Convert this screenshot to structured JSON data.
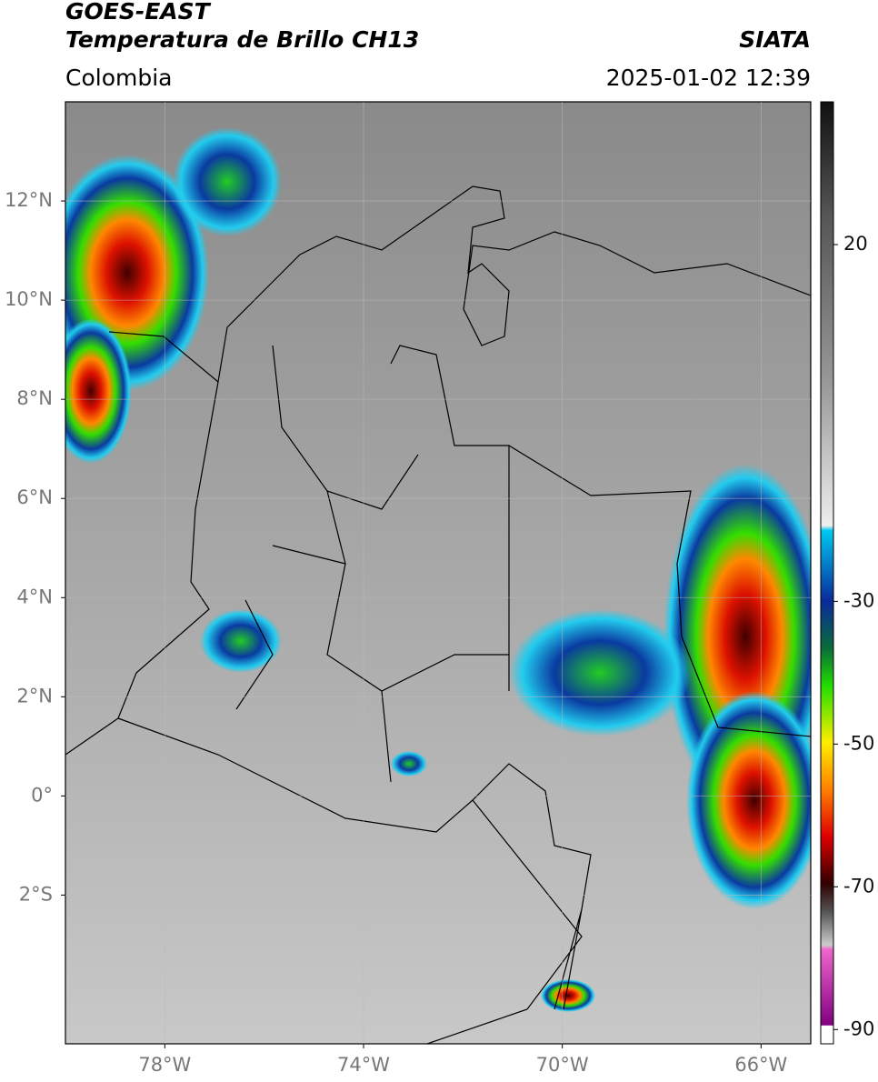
{
  "header": {
    "title": "GOES-EAST",
    "subtitle": "Temperatura de Brillo CH13",
    "source": "SIATA",
    "region": "Colombia",
    "datetime": "2025-01-02 12:39"
  },
  "map": {
    "xlim": [
      -80,
      -65
    ],
    "ylim": [
      -5,
      14
    ],
    "xticks": [
      {
        "value": -78,
        "label": "78°W"
      },
      {
        "value": -74,
        "label": "74°W"
      },
      {
        "value": -70,
        "label": "70°W"
      },
      {
        "value": -66,
        "label": "66°W"
      }
    ],
    "yticks": [
      {
        "value": 12,
        "label": "12°N"
      },
      {
        "value": 10,
        "label": "10°N"
      },
      {
        "value": 8,
        "label": "8°N"
      },
      {
        "value": 6,
        "label": "6°N"
      },
      {
        "value": 4,
        "label": "4°N"
      },
      {
        "value": 2,
        "label": "2°N"
      },
      {
        "value": 0,
        "label": "0°"
      },
      {
        "value": -2,
        "label": "2°S"
      }
    ]
  },
  "colorbar": {
    "lim": [
      -92,
      40
    ],
    "ticks": [
      20,
      -30,
      -50,
      -70,
      -90
    ]
  }
}
